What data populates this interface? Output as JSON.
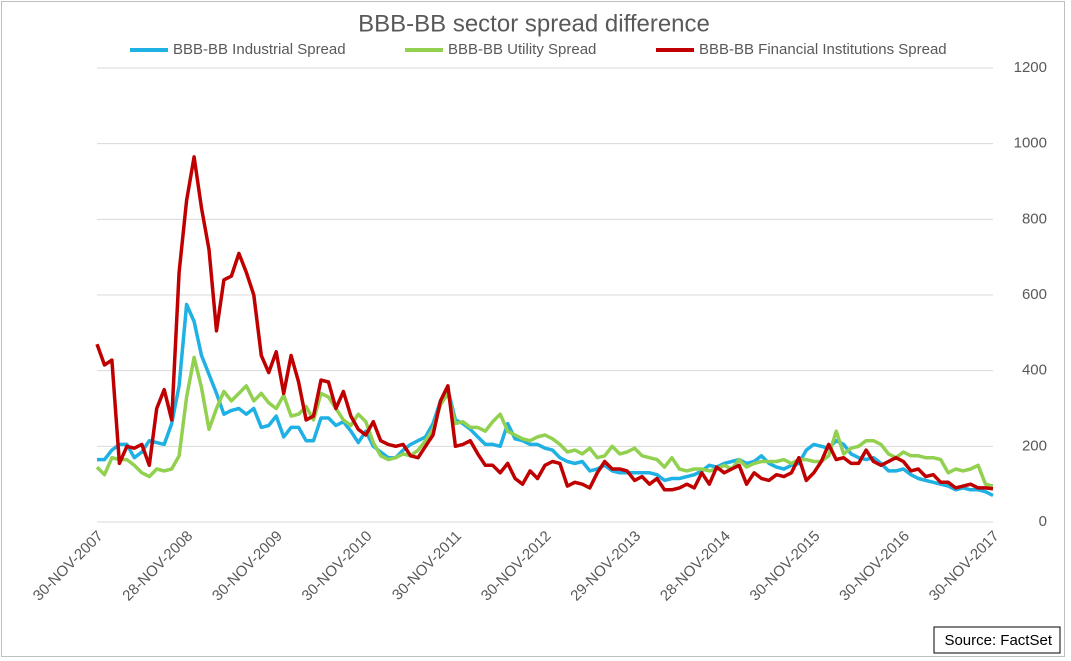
{
  "chart_data": {
    "type": "line",
    "title": "BBB-BB sector spread difference",
    "source": "Source: FactSet",
    "categories": [
      "30-NOV-2007",
      null,
      null,
      null,
      null,
      null,
      null,
      null,
      null,
      null,
      null,
      null,
      "28-NOV-2008",
      null,
      null,
      null,
      null,
      null,
      null,
      null,
      null,
      null,
      null,
      null,
      "30-NOV-2009",
      null,
      null,
      null,
      null,
      null,
      null,
      null,
      null,
      null,
      null,
      null,
      "30-NOV-2010",
      null,
      null,
      null,
      null,
      null,
      null,
      null,
      null,
      null,
      null,
      null,
      "30-NOV-2011",
      null,
      null,
      null,
      null,
      null,
      null,
      null,
      null,
      null,
      null,
      null,
      "30-NOV-2012",
      null,
      null,
      null,
      null,
      null,
      null,
      null,
      null,
      null,
      null,
      null,
      "29-NOV-2013",
      null,
      null,
      null,
      null,
      null,
      null,
      null,
      null,
      null,
      null,
      null,
      "28-NOV-2014",
      null,
      null,
      null,
      null,
      null,
      null,
      null,
      null,
      null,
      null,
      null,
      "30-NOV-2015",
      null,
      null,
      null,
      null,
      null,
      null,
      null,
      null,
      null,
      null,
      null,
      "30-NOV-2016",
      null,
      null,
      null,
      null,
      null,
      null,
      null,
      null,
      null,
      null,
      null,
      "30-NOV-2017"
    ],
    "series": [
      {
        "name": "BBB-BB Industrial Spread",
        "color": "#1fb0e4",
        "values": [
          165,
          165,
          190,
          205,
          205,
          170,
          185,
          215,
          210,
          205,
          260,
          360,
          575,
          530,
          440,
          390,
          340,
          285,
          295,
          300,
          285,
          300,
          250,
          255,
          280,
          225,
          250,
          250,
          215,
          215,
          275,
          275,
          255,
          265,
          240,
          210,
          240,
          200,
          185,
          170,
          170,
          190,
          205,
          215,
          225,
          260,
          320,
          350,
          270,
          260,
          245,
          225,
          205,
          205,
          200,
          260,
          220,
          215,
          205,
          205,
          195,
          190,
          170,
          160,
          155,
          160,
          135,
          140,
          150,
          135,
          130,
          130,
          130,
          130,
          130,
          125,
          110,
          115,
          115,
          120,
          125,
          135,
          150,
          145,
          155,
          160,
          165,
          155,
          160,
          175,
          155,
          145,
          140,
          150,
          155,
          190,
          205,
          200,
          195,
          215,
          205,
          180,
          170,
          165,
          170,
          155,
          135,
          135,
          140,
          125,
          115,
          110,
          105,
          100,
          95,
          85,
          90,
          85,
          85,
          80,
          70
        ]
      },
      {
        "name": "BBB-BB Utility Spread",
        "color": "#92d050",
        "values": [
          145,
          125,
          170,
          165,
          165,
          150,
          130,
          120,
          140,
          135,
          140,
          175,
          330,
          435,
          355,
          245,
          300,
          345,
          320,
          340,
          360,
          320,
          340,
          315,
          300,
          335,
          280,
          285,
          305,
          270,
          340,
          330,
          300,
          270,
          255,
          285,
          265,
          210,
          175,
          165,
          170,
          180,
          175,
          190,
          215,
          245,
          310,
          340,
          260,
          265,
          250,
          250,
          240,
          265,
          285,
          240,
          230,
          220,
          215,
          225,
          230,
          220,
          205,
          185,
          190,
          180,
          195,
          170,
          175,
          200,
          180,
          185,
          195,
          175,
          170,
          165,
          145,
          170,
          140,
          135,
          140,
          140,
          135,
          140,
          150,
          140,
          165,
          145,
          155,
          160,
          160,
          160,
          165,
          155,
          165,
          165,
          160,
          160,
          175,
          240,
          180,
          195,
          200,
          215,
          215,
          205,
          180,
          170,
          185,
          175,
          175,
          170,
          170,
          165,
          130,
          140,
          135,
          140,
          150,
          100,
          95
        ]
      },
      {
        "name": "BBB-BB Financial Institutions Spread",
        "color": "#c00000",
        "values": [
          470,
          415,
          428,
          155,
          200,
          195,
          205,
          150,
          300,
          350,
          270,
          660,
          850,
          965,
          830,
          720,
          505,
          640,
          650,
          710,
          660,
          600,
          440,
          395,
          450,
          340,
          440,
          370,
          270,
          280,
          375,
          370,
          300,
          345,
          280,
          245,
          230,
          265,
          215,
          205,
          200,
          205,
          175,
          170,
          200,
          230,
          320,
          360,
          200,
          205,
          215,
          180,
          150,
          150,
          130,
          155,
          115,
          100,
          135,
          115,
          150,
          160,
          155,
          95,
          105,
          100,
          90,
          130,
          160,
          140,
          140,
          135,
          110,
          120,
          100,
          115,
          85,
          85,
          90,
          100,
          90,
          130,
          100,
          145,
          130,
          140,
          150,
          100,
          130,
          115,
          110,
          125,
          120,
          130,
          170,
          110,
          130,
          160,
          205,
          165,
          170,
          155,
          155,
          190,
          160,
          150,
          160,
          170,
          160,
          135,
          140,
          120,
          125,
          105,
          105,
          90,
          95,
          100,
          90,
          90,
          88
        ]
      }
    ],
    "ylim": [
      0,
      1200
    ],
    "yticks": [
      0,
      200,
      400,
      600,
      800,
      1000,
      1200
    ],
    "grid": true,
    "legend": "top"
  }
}
